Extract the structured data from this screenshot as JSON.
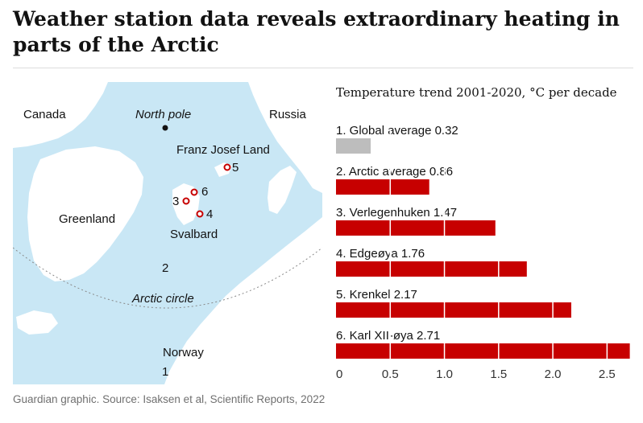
{
  "headline": "Weather station data reveals extraordinary heating in parts of the Arctic",
  "map": {
    "labels": {
      "canada": "Canada",
      "north_pole": "North pole",
      "russia": "Russia",
      "franz_josef_land": "Franz Josef Land",
      "greenland": "Greenland",
      "svalbard": "Svalbard",
      "arctic_circle": "Arctic circle",
      "norway": "Norway"
    },
    "station_numbers": {
      "s1": "1",
      "s2": "2",
      "s3": "3",
      "s4": "4",
      "s5": "5",
      "s6": "6"
    },
    "colors": {
      "sea": "#c9e7f5",
      "land": "#ffffff",
      "station_marker": "#c70000"
    }
  },
  "chart_data": {
    "type": "bar",
    "orientation": "horizontal",
    "title": "Temperature trend 2001-2020, °C per decade",
    "categories": [
      "1. Global average",
      "2. Arctic average",
      "3. Verlegenhuken",
      "4. Edgeøya",
      "5. Krenkel",
      "6. Karl XII-øya"
    ],
    "values": [
      0.32,
      0.86,
      1.47,
      1.76,
      2.17,
      2.71
    ],
    "value_labels": [
      "0.32",
      "0.86",
      "1.47",
      "1.76",
      "2.17",
      "2.71"
    ],
    "bar_colors": [
      "#bdbdbd",
      "#c70000",
      "#c70000",
      "#c70000",
      "#c70000",
      "#c70000"
    ],
    "xlim": [
      0,
      2.75
    ],
    "xticks": [
      0,
      0.5,
      1.0,
      1.5,
      2.0,
      2.5
    ],
    "xtick_labels": [
      "0",
      "0.5",
      "1.0",
      "1.5",
      "2.0",
      "2.5"
    ],
    "grid": "vertical white lines at each 0.5 tick, drawn over bars"
  },
  "source": "Guardian graphic. Source: Isaksen et al, Scientific Reports, 2022"
}
